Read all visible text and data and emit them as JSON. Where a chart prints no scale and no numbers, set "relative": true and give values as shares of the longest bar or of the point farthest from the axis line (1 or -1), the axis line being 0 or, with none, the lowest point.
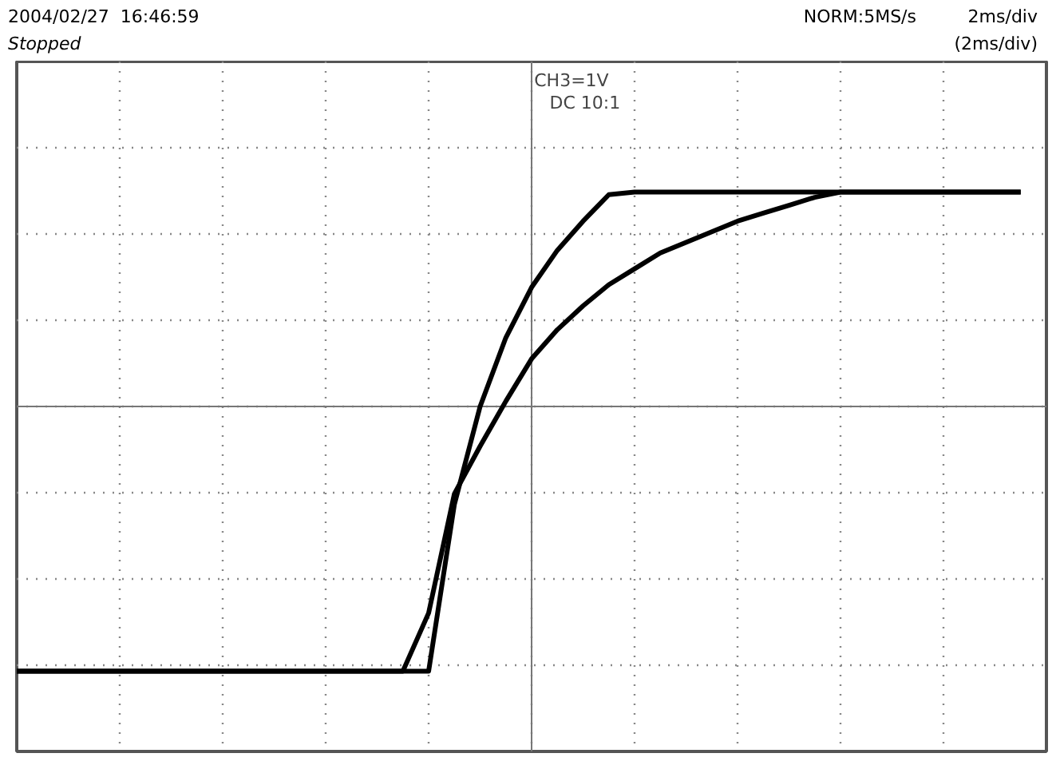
{
  "chart_data": {
    "type": "line",
    "relative": true,
    "grid": true,
    "marker": "none",
    "line_style": "solid",
    "categories": [
      null,
      null,
      null,
      null,
      null,
      null,
      null,
      null,
      null,
      null,
      null,
      null,
      null,
      null,
      null,
      null,
      null,
      null,
      null,
      null,
      null,
      null,
      null,
      null,
      null,
      null,
      null,
      null,
      null,
      null,
      null,
      null,
      null,
      null,
      null,
      null,
      null,
      null,
      null,
      null,
      null
    ],
    "series": [
      {
        "color": "#000000",
        "values": [
          -1,
          -1,
          -1,
          -1,
          -1,
          -1,
          -1,
          -1,
          -1,
          -1,
          -1,
          -1,
          -1,
          -1,
          -1,
          -1,
          -1,
          -0.37,
          0,
          0.26,
          0.45,
          0.59,
          0.7,
          0.8,
          0.81,
          0.81,
          0.81,
          0.81,
          0.81,
          0.81,
          0.81,
          0.81,
          0.81,
          0.81,
          0.81,
          0.81,
          0.81,
          0.81,
          0.81,
          0.81,
          null
        ]
      },
      {
        "color": "#000000",
        "values": [
          -1,
          -1,
          -1,
          -1,
          -1,
          -1,
          -1,
          -1,
          -1,
          -1,
          -1,
          -1,
          -1,
          -1,
          -1,
          -1,
          -0.78,
          -0.33,
          -0.15,
          0.02,
          0.18,
          0.29,
          0.38,
          0.46,
          0.52,
          0.58,
          0.62,
          0.66,
          0.7,
          0.73,
          0.76,
          0.79,
          0.81,
          0.81,
          0.81,
          0.81,
          0.81,
          0.81,
          0.81,
          0.81,
          null
        ]
      }
    ],
    "annotations": [
      "2004/02/27  16:46:59",
      "Stopped",
      "NORM:5MS/s",
      "2ms/div",
      "(2ms/div)",
      "CH3=1V",
      "DC  10:1"
    ]
  }
}
